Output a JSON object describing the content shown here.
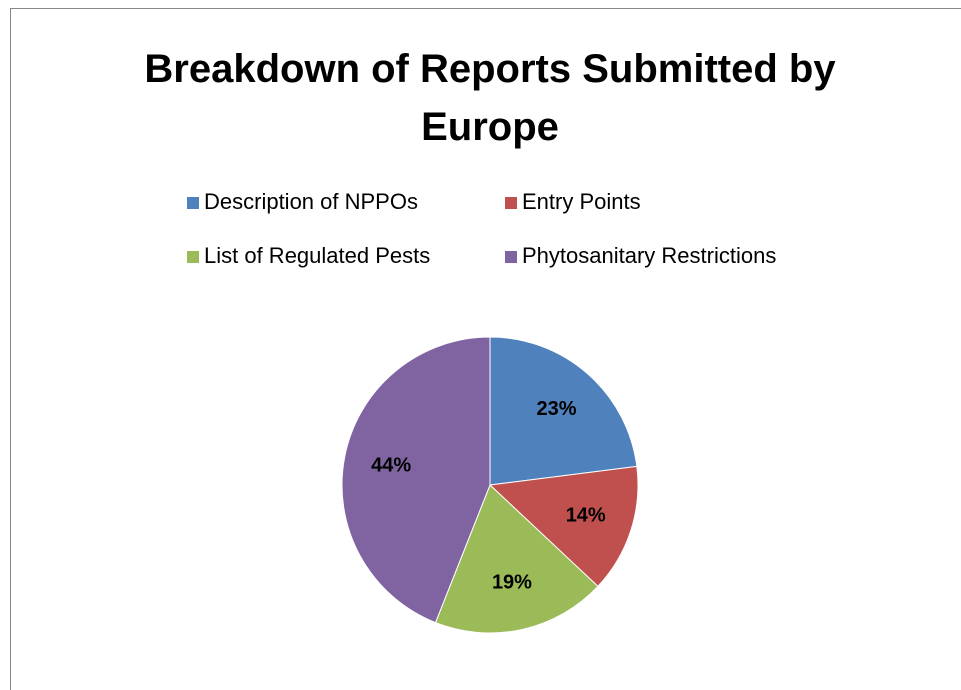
{
  "chart_data": {
    "type": "pie",
    "title": "Breakdown of Reports Submitted by Europe",
    "categories": [
      "Description of NPPOs",
      "Entry Points",
      "List of Regulated Pests",
      "Phytosanitary Restrictions"
    ],
    "values": [
      23,
      14,
      19,
      44
    ],
    "value_labels": [
      "23%",
      "14%",
      "19%",
      "44%"
    ],
    "colors": [
      "#4f81bd",
      "#c0504d",
      "#9bbb59",
      "#8064a2"
    ],
    "legend": "top"
  }
}
